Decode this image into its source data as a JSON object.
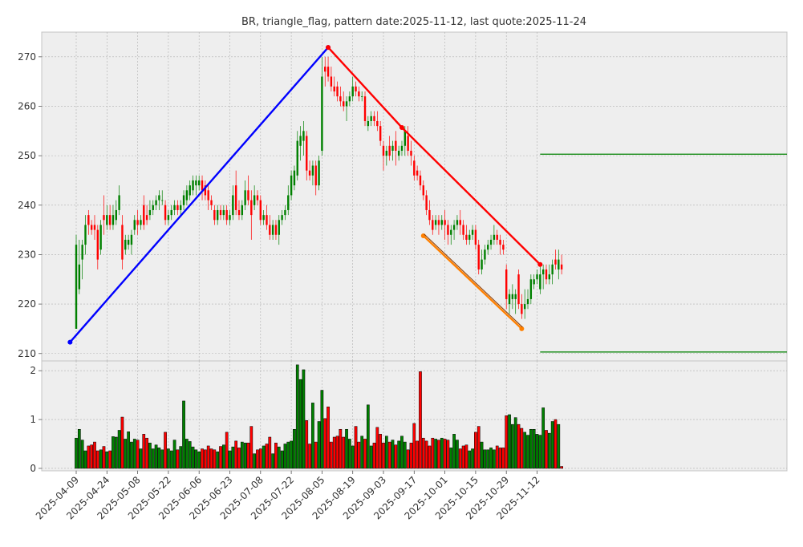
{
  "chart_data": {
    "type": "candlestick",
    "title": "BR, triangle_flag, pattern date:2025-11-12, last quote:2025-11-24",
    "x_tick_labels": [
      "2025-04-09",
      "2025-04-24",
      "2025-05-08",
      "2025-05-22",
      "2025-06-06",
      "2025-06-23",
      "2025-07-08",
      "2025-07-22",
      "2025-08-05",
      "2025-08-19",
      "2025-09-03",
      "2025-09-17",
      "2025-10-01",
      "2025-10-15",
      "2025-10-29",
      "2025-11-12"
    ],
    "price_axis": {
      "ylim": [
        208.5,
        275
      ],
      "ticks": [
        210,
        220,
        230,
        240,
        250,
        260,
        270
      ]
    },
    "volume_axis": {
      "ylim": [
        -0.05,
        2.2
      ],
      "ticks": [
        0,
        1,
        2
      ]
    },
    "grid": true,
    "colors": {
      "up": "#008000",
      "down": "#ff0000",
      "support_line": "#0000ff",
      "resistance_line": "#ff0000",
      "flag_line": "#ff8000",
      "level_line": "#008000",
      "panel_bg": "#eeeeee",
      "grid": "#b0b0b0"
    },
    "candles": [
      {
        "o": 215,
        "h": 234,
        "l": 215,
        "c": 232,
        "v": 0.62
      },
      {
        "o": 223,
        "h": 233,
        "l": 222,
        "c": 228,
        "v": 0.8
      },
      {
        "o": 229,
        "h": 233,
        "l": 225,
        "c": 232,
        "v": 0.58
      },
      {
        "o": 232,
        "h": 238,
        "l": 230,
        "c": 236,
        "v": 0.36
      },
      {
        "o": 238,
        "h": 239,
        "l": 234,
        "c": 236,
        "v": 0.46
      },
      {
        "o": 236,
        "h": 237,
        "l": 234,
        "c": 235,
        "v": 0.48
      },
      {
        "o": 236,
        "h": 238,
        "l": 233,
        "c": 235,
        "v": 0.54
      },
      {
        "o": 235,
        "h": 236,
        "l": 227,
        "c": 229,
        "v": 0.36
      },
      {
        "o": 231,
        "h": 237,
        "l": 230,
        "c": 236,
        "v": 0.38
      },
      {
        "o": 238,
        "h": 242,
        "l": 234,
        "c": 237,
        "v": 0.45
      },
      {
        "o": 236,
        "h": 240,
        "l": 235,
        "c": 238,
        "v": 0.34
      },
      {
        "o": 238,
        "h": 240,
        "l": 235,
        "c": 236,
        "v": 0.36
      },
      {
        "o": 236,
        "h": 240,
        "l": 235,
        "c": 238,
        "v": 0.65
      },
      {
        "o": 237,
        "h": 241,
        "l": 236,
        "c": 239,
        "v": 0.64
      },
      {
        "o": 239,
        "h": 244,
        "l": 238,
        "c": 242,
        "v": 0.78
      },
      {
        "o": 236,
        "h": 238,
        "l": 227,
        "c": 229,
        "v": 1.05
      },
      {
        "o": 231,
        "h": 234,
        "l": 230,
        "c": 233,
        "v": 0.6
      },
      {
        "o": 232,
        "h": 234,
        "l": 231,
        "c": 233,
        "v": 0.75
      },
      {
        "o": 232,
        "h": 235,
        "l": 230,
        "c": 234,
        "v": 0.54
      },
      {
        "o": 235,
        "h": 238,
        "l": 234,
        "c": 237,
        "v": 0.6
      },
      {
        "o": 237,
        "h": 239,
        "l": 234,
        "c": 236,
        "v": 0.58
      },
      {
        "o": 236,
        "h": 238,
        "l": 235,
        "c": 237,
        "v": 0.4
      },
      {
        "o": 240,
        "h": 242,
        "l": 235,
        "c": 236,
        "v": 0.7
      },
      {
        "o": 238,
        "h": 240,
        "l": 236,
        "c": 237,
        "v": 0.62
      },
      {
        "o": 238,
        "h": 241,
        "l": 237,
        "c": 239,
        "v": 0.52
      },
      {
        "o": 239,
        "h": 241,
        "l": 238,
        "c": 240,
        "v": 0.4
      },
      {
        "o": 240,
        "h": 242,
        "l": 239,
        "c": 241,
        "v": 0.48
      },
      {
        "o": 241,
        "h": 243,
        "l": 239,
        "c": 242,
        "v": 0.42
      },
      {
        "o": 241,
        "h": 243,
        "l": 240,
        "c": 241,
        "v": 0.38
      },
      {
        "o": 240,
        "h": 241,
        "l": 236,
        "c": 237,
        "v": 0.74
      },
      {
        "o": 237,
        "h": 239,
        "l": 236,
        "c": 238,
        "v": 0.4
      },
      {
        "o": 238,
        "h": 240,
        "l": 237,
        "c": 239,
        "v": 0.36
      },
      {
        "o": 239,
        "h": 241,
        "l": 238,
        "c": 240,
        "v": 0.58
      },
      {
        "o": 240,
        "h": 241,
        "l": 238,
        "c": 239,
        "v": 0.38
      },
      {
        "o": 239,
        "h": 241,
        "l": 238,
        "c": 240,
        "v": 0.45
      },
      {
        "o": 240,
        "h": 243,
        "l": 239,
        "c": 242,
        "v": 1.38
      },
      {
        "o": 241,
        "h": 244,
        "l": 240,
        "c": 243,
        "v": 0.6
      },
      {
        "o": 242,
        "h": 245,
        "l": 241,
        "c": 244,
        "v": 0.55
      },
      {
        "o": 243,
        "h": 246,
        "l": 242,
        "c": 245,
        "v": 0.44
      },
      {
        "o": 244,
        "h": 246,
        "l": 242,
        "c": 245,
        "v": 0.38
      },
      {
        "o": 244,
        "h": 246,
        "l": 243,
        "c": 245,
        "v": 0.34
      },
      {
        "o": 245,
        "h": 246,
        "l": 241,
        "c": 243,
        "v": 0.4
      },
      {
        "o": 244,
        "h": 245,
        "l": 241,
        "c": 242,
        "v": 0.38
      },
      {
        "o": 243,
        "h": 244,
        "l": 239,
        "c": 241,
        "v": 0.46
      },
      {
        "o": 241,
        "h": 242,
        "l": 239,
        "c": 240,
        "v": 0.4
      },
      {
        "o": 239,
        "h": 240,
        "l": 236,
        "c": 237,
        "v": 0.38
      },
      {
        "o": 237,
        "h": 240,
        "l": 236,
        "c": 239,
        "v": 0.34
      },
      {
        "o": 239,
        "h": 240,
        "l": 237,
        "c": 238,
        "v": 0.45
      },
      {
        "o": 238,
        "h": 240,
        "l": 237,
        "c": 239,
        "v": 0.48
      },
      {
        "o": 239,
        "h": 240,
        "l": 236,
        "c": 237,
        "v": 0.74
      },
      {
        "o": 237,
        "h": 239,
        "l": 236,
        "c": 238,
        "v": 0.36
      },
      {
        "o": 238,
        "h": 244,
        "l": 237,
        "c": 242,
        "v": 0.44
      },
      {
        "o": 244,
        "h": 247,
        "l": 238,
        "c": 239,
        "v": 0.56
      },
      {
        "o": 239,
        "h": 241,
        "l": 237,
        "c": 238,
        "v": 0.42
      },
      {
        "o": 238,
        "h": 241,
        "l": 237,
        "c": 240,
        "v": 0.54
      },
      {
        "o": 240,
        "h": 245,
        "l": 239,
        "c": 243,
        "v": 0.52
      },
      {
        "o": 243,
        "h": 246,
        "l": 240,
        "c": 241,
        "v": 0.52
      },
      {
        "o": 241,
        "h": 243,
        "l": 233,
        "c": 238,
        "v": 0.86
      },
      {
        "o": 240,
        "h": 244,
        "l": 239,
        "c": 242,
        "v": 0.3
      },
      {
        "o": 242,
        "h": 243,
        "l": 240,
        "c": 241,
        "v": 0.38
      },
      {
        "o": 241,
        "h": 242,
        "l": 236,
        "c": 237,
        "v": 0.4
      },
      {
        "o": 237,
        "h": 239,
        "l": 236,
        "c": 238,
        "v": 0.46
      },
      {
        "o": 238,
        "h": 240,
        "l": 235,
        "c": 236,
        "v": 0.5
      },
      {
        "o": 236,
        "h": 238,
        "l": 233,
        "c": 234,
        "v": 0.64
      },
      {
        "o": 234,
        "h": 237,
        "l": 233,
        "c": 236,
        "v": 0.3
      },
      {
        "o": 236,
        "h": 237,
        "l": 233,
        "c": 234,
        "v": 0.52
      },
      {
        "o": 234,
        "h": 238,
        "l": 232,
        "c": 237,
        "v": 0.44
      },
      {
        "o": 237,
        "h": 239,
        "l": 236,
        "c": 238,
        "v": 0.36
      },
      {
        "o": 238,
        "h": 240,
        "l": 237,
        "c": 239,
        "v": 0.5
      },
      {
        "o": 239,
        "h": 244,
        "l": 238,
        "c": 242,
        "v": 0.54
      },
      {
        "o": 242,
        "h": 247,
        "l": 241,
        "c": 246,
        "v": 0.56
      },
      {
        "o": 244,
        "h": 248,
        "l": 243,
        "c": 247,
        "v": 0.8
      },
      {
        "o": 246,
        "h": 255,
        "l": 245,
        "c": 253,
        "v": 2.12
      },
      {
        "o": 252,
        "h": 256,
        "l": 249,
        "c": 254,
        "v": 1.82
      },
      {
        "o": 253,
        "h": 257,
        "l": 250,
        "c": 255,
        "v": 2.02
      },
      {
        "o": 254,
        "h": 255,
        "l": 245,
        "c": 247,
        "v": 0.98
      },
      {
        "o": 247,
        "h": 249,
        "l": 245,
        "c": 246,
        "v": 0.5
      },
      {
        "o": 246,
        "h": 249,
        "l": 244,
        "c": 248,
        "v": 1.34
      },
      {
        "o": 248,
        "h": 249,
        "l": 242,
        "c": 244,
        "v": 0.54
      },
      {
        "o": 244,
        "h": 250,
        "l": 243,
        "c": 249,
        "v": 0.96
      },
      {
        "o": 251,
        "h": 270,
        "l": 250,
        "c": 266,
        "v": 1.6
      },
      {
        "o": 268,
        "h": 270,
        "l": 264,
        "c": 267,
        "v": 1.02
      },
      {
        "o": 268,
        "h": 270,
        "l": 265,
        "c": 266,
        "v": 1.26
      },
      {
        "o": 266,
        "h": 268,
        "l": 263,
        "c": 264,
        "v": 0.54
      },
      {
        "o": 264,
        "h": 266,
        "l": 262,
        "c": 263,
        "v": 0.64
      },
      {
        "o": 264,
        "h": 265,
        "l": 261,
        "c": 262,
        "v": 0.66
      },
      {
        "o": 262,
        "h": 264,
        "l": 260,
        "c": 261,
        "v": 0.8
      },
      {
        "o": 261,
        "h": 263,
        "l": 259,
        "c": 260,
        "v": 0.64
      },
      {
        "o": 260,
        "h": 262,
        "l": 257,
        "c": 261,
        "v": 0.8
      },
      {
        "o": 261,
        "h": 263,
        "l": 260,
        "c": 262,
        "v": 0.6
      },
      {
        "o": 262,
        "h": 266,
        "l": 261,
        "c": 264,
        "v": 0.46
      },
      {
        "o": 264,
        "h": 265,
        "l": 262,
        "c": 263,
        "v": 0.86
      },
      {
        "o": 263,
        "h": 264,
        "l": 261,
        "c": 262,
        "v": 0.54
      },
      {
        "o": 262,
        "h": 263,
        "l": 261,
        "c": 262,
        "v": 0.66
      },
      {
        "o": 262,
        "h": 263,
        "l": 256,
        "c": 257,
        "v": 0.6
      },
      {
        "o": 256,
        "h": 258,
        "l": 255,
        "c": 257,
        "v": 1.3
      },
      {
        "o": 257,
        "h": 259,
        "l": 256,
        "c": 258,
        "v": 0.46
      },
      {
        "o": 258,
        "h": 259,
        "l": 256,
        "c": 257,
        "v": 0.52
      },
      {
        "o": 257,
        "h": 259,
        "l": 255,
        "c": 256,
        "v": 0.84
      },
      {
        "o": 256,
        "h": 257,
        "l": 252,
        "c": 253,
        "v": 0.7
      },
      {
        "o": 252,
        "h": 253,
        "l": 247,
        "c": 250,
        "v": 0.52
      },
      {
        "o": 250,
        "h": 252,
        "l": 248,
        "c": 251,
        "v": 0.66
      },
      {
        "o": 252,
        "h": 254,
        "l": 249,
        "c": 250,
        "v": 0.54
      },
      {
        "o": 251,
        "h": 253,
        "l": 249,
        "c": 252,
        "v": 0.58
      },
      {
        "o": 253,
        "h": 255,
        "l": 248,
        "c": 251,
        "v": 0.48
      },
      {
        "o": 250,
        "h": 252,
        "l": 249,
        "c": 251,
        "v": 0.56
      },
      {
        "o": 251,
        "h": 253,
        "l": 250,
        "c": 252,
        "v": 0.66
      },
      {
        "o": 252,
        "h": 256,
        "l": 250,
        "c": 255,
        "v": 0.54
      },
      {
        "o": 254,
        "h": 256,
        "l": 250,
        "c": 251,
        "v": 0.38
      },
      {
        "o": 251,
        "h": 253,
        "l": 248,
        "c": 250,
        "v": 0.52
      },
      {
        "o": 249,
        "h": 250,
        "l": 245,
        "c": 246,
        "v": 0.92
      },
      {
        "o": 247,
        "h": 248,
        "l": 245,
        "c": 246,
        "v": 0.56
      },
      {
        "o": 246,
        "h": 247,
        "l": 243,
        "c": 244,
        "v": 1.98
      },
      {
        "o": 244,
        "h": 245,
        "l": 241,
        "c": 242,
        "v": 0.62
      },
      {
        "o": 242,
        "h": 243,
        "l": 238,
        "c": 239,
        "v": 0.56
      },
      {
        "o": 239,
        "h": 241,
        "l": 236,
        "c": 237,
        "v": 0.46
      },
      {
        "o": 237,
        "h": 238,
        "l": 234,
        "c": 235,
        "v": 0.62
      },
      {
        "o": 236,
        "h": 238,
        "l": 235,
        "c": 237,
        "v": 0.6
      },
      {
        "o": 237,
        "h": 238,
        "l": 234,
        "c": 236,
        "v": 0.58
      },
      {
        "o": 236,
        "h": 238,
        "l": 235,
        "c": 237,
        "v": 0.62
      },
      {
        "o": 237,
        "h": 239,
        "l": 233,
        "c": 236,
        "v": 0.6
      },
      {
        "o": 236,
        "h": 237,
        "l": 232,
        "c": 234,
        "v": 0.58
      },
      {
        "o": 234,
        "h": 236,
        "l": 232,
        "c": 235,
        "v": 0.42
      },
      {
        "o": 235,
        "h": 237,
        "l": 233,
        "c": 236,
        "v": 0.7
      },
      {
        "o": 236,
        "h": 238,
        "l": 235,
        "c": 237,
        "v": 0.58
      },
      {
        "o": 237,
        "h": 239,
        "l": 234,
        "c": 236,
        "v": 0.4
      },
      {
        "o": 236,
        "h": 237,
        "l": 233,
        "c": 234,
        "v": 0.46
      },
      {
        "o": 234,
        "h": 236,
        "l": 232,
        "c": 233,
        "v": 0.48
      },
      {
        "o": 233,
        "h": 235,
        "l": 232,
        "c": 234,
        "v": 0.36
      },
      {
        "o": 234,
        "h": 236,
        "l": 233,
        "c": 235,
        "v": 0.4
      },
      {
        "o": 235,
        "h": 236,
        "l": 231,
        "c": 232,
        "v": 0.74
      },
      {
        "o": 232,
        "h": 233,
        "l": 226,
        "c": 227,
        "v": 0.86
      },
      {
        "o": 227,
        "h": 231,
        "l": 226,
        "c": 229,
        "v": 0.54
      },
      {
        "o": 229,
        "h": 232,
        "l": 228,
        "c": 231,
        "v": 0.38
      },
      {
        "o": 231,
        "h": 233,
        "l": 230,
        "c": 232,
        "v": 0.38
      },
      {
        "o": 232,
        "h": 234,
        "l": 231,
        "c": 233,
        "v": 0.42
      },
      {
        "o": 233,
        "h": 236,
        "l": 232,
        "c": 234,
        "v": 0.38
      },
      {
        "o": 234,
        "h": 235,
        "l": 232,
        "c": 233,
        "v": 0.46
      },
      {
        "o": 233,
        "h": 234,
        "l": 230,
        "c": 232,
        "v": 0.42
      },
      {
        "o": 232,
        "h": 233,
        "l": 230,
        "c": 231,
        "v": 0.42
      },
      {
        "o": 227,
        "h": 228,
        "l": 219,
        "c": 221,
        "v": 1.08
      },
      {
        "o": 220,
        "h": 223,
        "l": 218,
        "c": 222,
        "v": 1.1
      },
      {
        "o": 221,
        "h": 224,
        "l": 219,
        "c": 222,
        "v": 0.9
      },
      {
        "o": 221,
        "h": 223,
        "l": 218,
        "c": 222,
        "v": 1.04
      },
      {
        "o": 226,
        "h": 227,
        "l": 219,
        "c": 220,
        "v": 0.9
      },
      {
        "o": 220,
        "h": 222,
        "l": 217,
        "c": 218,
        "v": 0.82
      },
      {
        "o": 219,
        "h": 223,
        "l": 217,
        "c": 220,
        "v": 0.74
      },
      {
        "o": 220,
        "h": 223,
        "l": 219,
        "c": 221,
        "v": 0.68
      },
      {
        "o": 221,
        "h": 226,
        "l": 220,
        "c": 225,
        "v": 0.8
      },
      {
        "o": 224,
        "h": 226,
        "l": 223,
        "c": 225,
        "v": 0.8
      },
      {
        "o": 225,
        "h": 227,
        "l": 224,
        "c": 226,
        "v": 0.7
      },
      {
        "o": 223,
        "h": 228,
        "l": 222,
        "c": 226,
        "v": 0.68
      },
      {
        "o": 226,
        "h": 228,
        "l": 223,
        "c": 227,
        "v": 1.24
      },
      {
        "o": 227,
        "h": 228,
        "l": 224,
        "c": 225,
        "v": 0.78
      },
      {
        "o": 225,
        "h": 228,
        "l": 224,
        "c": 226,
        "v": 0.72
      },
      {
        "o": 226,
        "h": 229,
        "l": 224,
        "c": 228,
        "v": 0.96
      },
      {
        "o": 229,
        "h": 231,
        "l": 227,
        "c": 228,
        "v": 1.0
      },
      {
        "o": 227,
        "h": 231,
        "l": 225,
        "c": 229,
        "v": 0.9
      },
      {
        "o": 228,
        "h": 230,
        "l": 226,
        "c": 227,
        "v": 0.04
      }
    ],
    "trendlines": [
      {
        "name": "support",
        "color": "#0000ff",
        "points": [
          [
            -2,
            212.3
          ],
          [
            82,
            271.9
          ]
        ]
      },
      {
        "name": "resistance",
        "color": "#ff0000",
        "points": [
          [
            82,
            271.9
          ],
          [
            106,
            255.7
          ],
          [
            151,
            228.0
          ]
        ]
      },
      {
        "name": "flag_lower",
        "color": "#ff8000",
        "points": [
          [
            113,
            233.8
          ],
          [
            145,
            215.0
          ]
        ]
      }
    ],
    "levels": [
      {
        "name": "upper_level",
        "value": 250.3,
        "from_index": 151
      },
      {
        "name": "lower_level",
        "value": 210.3,
        "from_index": 151
      }
    ]
  }
}
